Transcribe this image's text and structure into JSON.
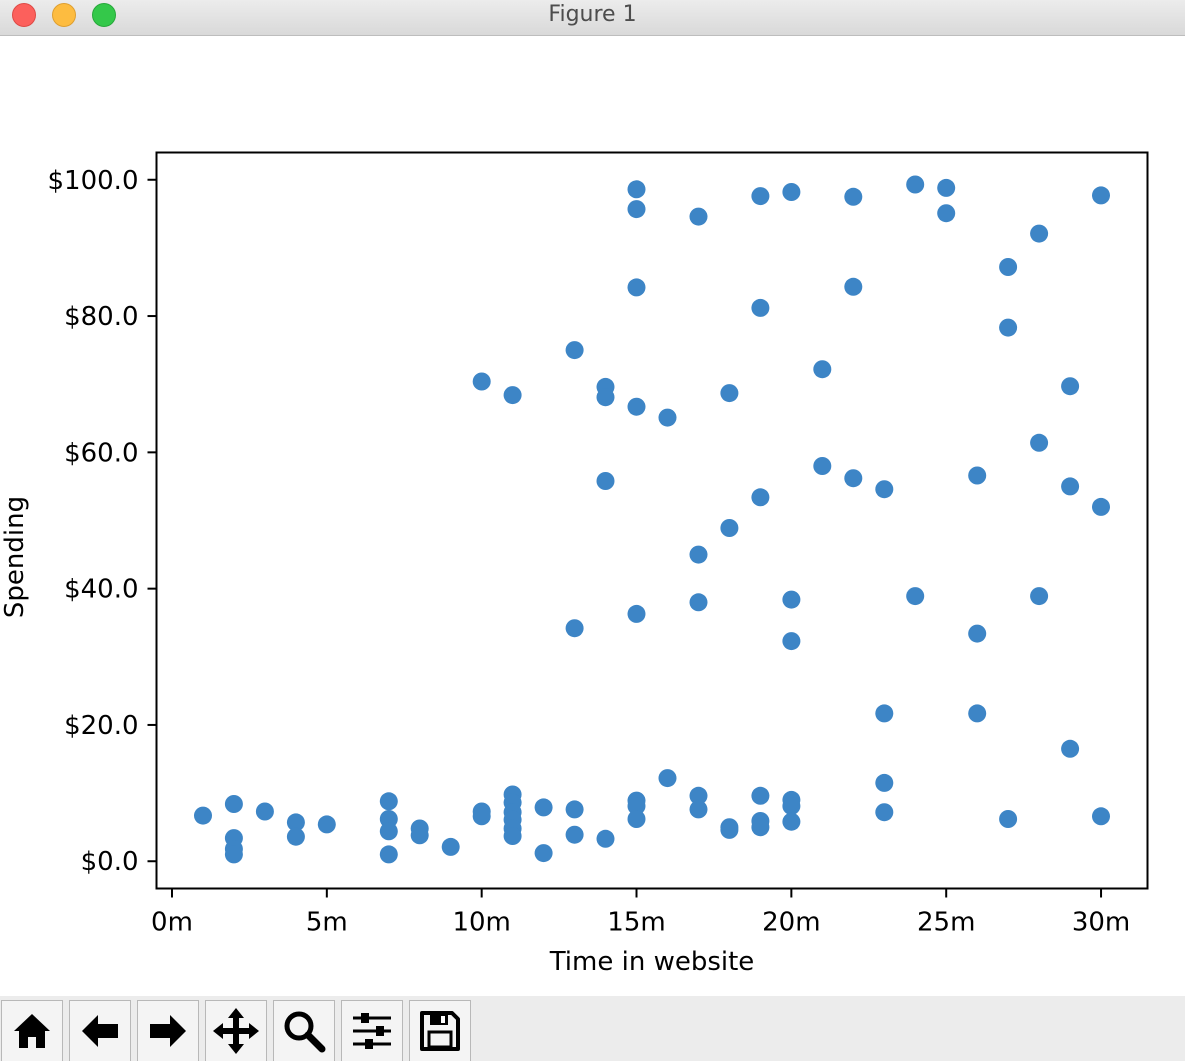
{
  "window": {
    "title": "Figure 1"
  },
  "toolbar": {
    "buttons": [
      {
        "name": "home-button",
        "icon": "home-icon"
      },
      {
        "name": "back-button",
        "icon": "arrow-left-icon"
      },
      {
        "name": "forward-button",
        "icon": "arrow-right-icon"
      },
      {
        "name": "pan-button",
        "icon": "move-icon"
      },
      {
        "name": "zoom-button",
        "icon": "magnifier-icon"
      },
      {
        "name": "configure-subplots-button",
        "icon": "sliders-icon"
      },
      {
        "name": "save-button",
        "icon": "floppy-disk-icon"
      }
    ]
  },
  "chart_data": {
    "type": "scatter",
    "title": "",
    "xlabel": "Time in website",
    "ylabel": "Spending",
    "xlim": [
      -0.5,
      31.5
    ],
    "ylim": [
      -4,
      104
    ],
    "xticks": [
      0,
      5,
      10,
      15,
      20,
      25,
      30
    ],
    "xtick_labels": [
      "0m",
      "5m",
      "10m",
      "15m",
      "20m",
      "25m",
      "30m"
    ],
    "yticks": [
      0,
      20,
      40,
      60,
      80,
      100
    ],
    "ytick_labels": [
      "$0.0",
      "$20.0",
      "$40.0",
      "$60.0",
      "$80.0",
      "$100.0"
    ],
    "color": "#3d85c6",
    "grid": false,
    "points": [
      [
        1,
        6.7
      ],
      [
        2,
        8.4
      ],
      [
        2,
        3.4
      ],
      [
        2,
        1.8
      ],
      [
        2,
        1.0
      ],
      [
        3,
        7.3
      ],
      [
        4,
        5.7
      ],
      [
        4,
        3.6
      ],
      [
        5,
        5.4
      ],
      [
        7,
        8.8
      ],
      [
        7,
        6.2
      ],
      [
        7,
        4.4
      ],
      [
        7,
        1.0
      ],
      [
        8,
        4.8
      ],
      [
        8,
        3.8
      ],
      [
        9,
        2.1
      ],
      [
        10,
        70.4
      ],
      [
        10,
        7.3
      ],
      [
        10,
        6.6
      ],
      [
        11,
        68.4
      ],
      [
        11,
        9.8
      ],
      [
        11,
        8.6
      ],
      [
        11,
        7.2
      ],
      [
        11,
        6.1
      ],
      [
        11,
        4.8
      ],
      [
        11,
        3.7
      ],
      [
        12,
        7.9
      ],
      [
        12,
        1.2
      ],
      [
        13,
        75.0
      ],
      [
        13,
        34.2
      ],
      [
        13,
        7.6
      ],
      [
        13,
        3.9
      ],
      [
        14,
        69.6
      ],
      [
        14,
        68.1
      ],
      [
        14,
        55.8
      ],
      [
        14,
        3.3
      ],
      [
        15,
        98.6
      ],
      [
        15,
        95.7
      ],
      [
        15,
        84.2
      ],
      [
        15,
        66.7
      ],
      [
        15,
        36.3
      ],
      [
        15,
        8.9
      ],
      [
        15,
        8.1
      ],
      [
        15,
        6.2
      ],
      [
        16,
        65.1
      ],
      [
        16,
        12.2
      ],
      [
        17,
        94.6
      ],
      [
        17,
        45.0
      ],
      [
        17,
        38.0
      ],
      [
        17,
        9.6
      ],
      [
        17,
        7.6
      ],
      [
        18,
        68.7
      ],
      [
        18,
        48.9
      ],
      [
        18,
        5.0
      ],
      [
        18,
        4.6
      ],
      [
        19,
        97.6
      ],
      [
        19,
        81.2
      ],
      [
        19,
        53.4
      ],
      [
        19,
        9.6
      ],
      [
        19,
        5.9
      ],
      [
        19,
        5.0
      ],
      [
        20,
        98.2
      ],
      [
        20,
        38.4
      ],
      [
        20,
        32.3
      ],
      [
        20,
        9.0
      ],
      [
        20,
        8.1
      ],
      [
        20,
        5.8
      ],
      [
        21,
        72.2
      ],
      [
        21,
        58.0
      ],
      [
        22,
        97.5
      ],
      [
        22,
        84.3
      ],
      [
        22,
        56.2
      ],
      [
        23,
        54.6
      ],
      [
        23,
        21.7
      ],
      [
        23,
        11.5
      ],
      [
        23,
        7.2
      ],
      [
        24,
        99.3
      ],
      [
        24,
        38.9
      ],
      [
        25,
        98.8
      ],
      [
        25,
        95.1
      ],
      [
        26,
        56.6
      ],
      [
        26,
        33.4
      ],
      [
        26,
        21.7
      ],
      [
        27,
        87.2
      ],
      [
        27,
        78.3
      ],
      [
        27,
        6.2
      ],
      [
        28,
        92.1
      ],
      [
        28,
        61.4
      ],
      [
        28,
        38.9
      ],
      [
        29,
        69.7
      ],
      [
        29,
        55.0
      ],
      [
        29,
        16.5
      ],
      [
        30,
        97.7
      ],
      [
        30,
        52.0
      ],
      [
        30,
        6.6
      ]
    ]
  }
}
